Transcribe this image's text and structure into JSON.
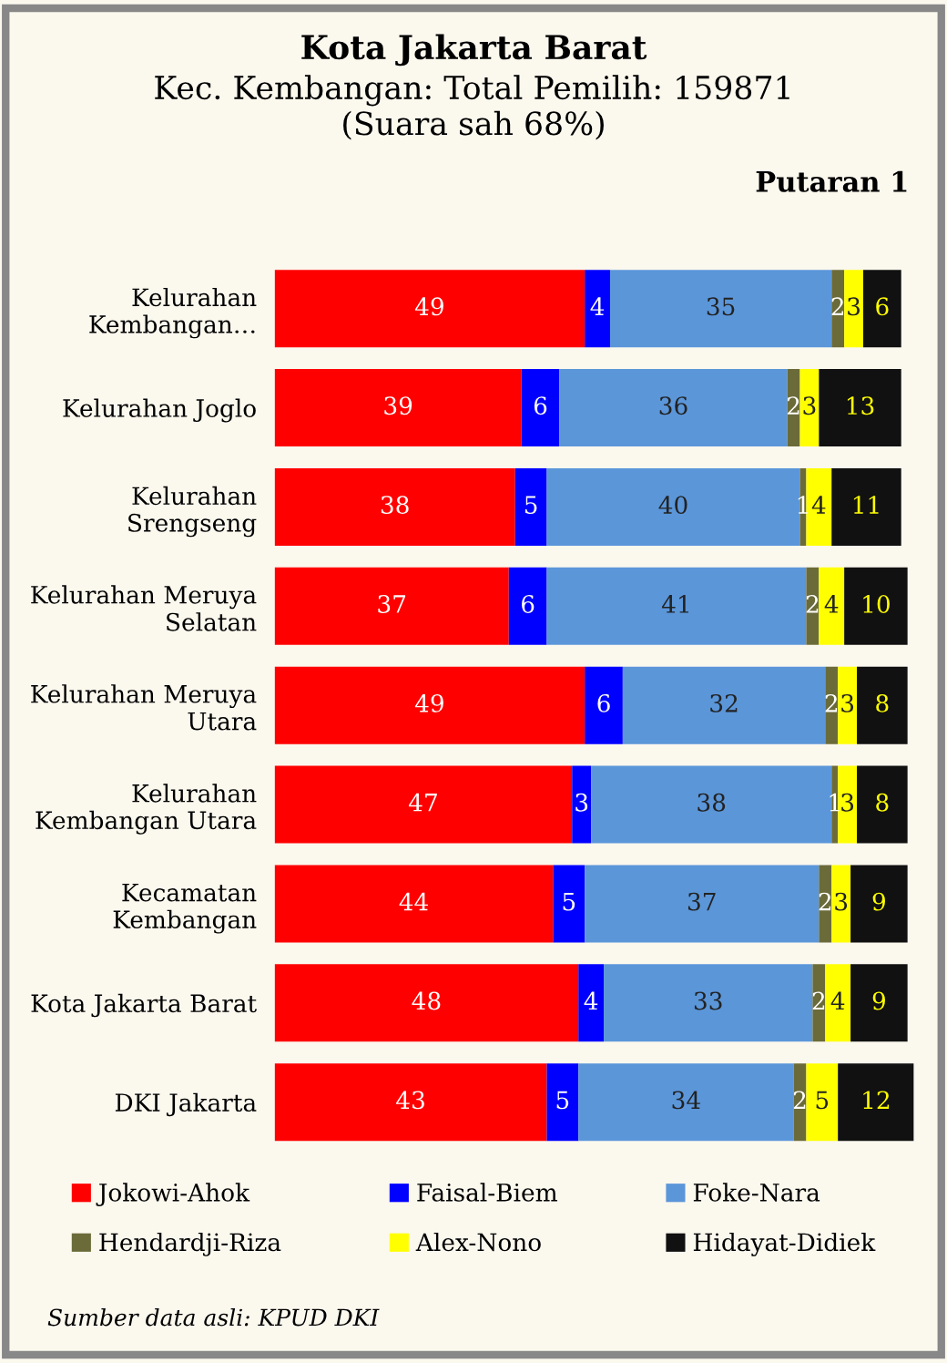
{
  "chart_data": {
    "type": "bar",
    "orientation": "horizontal",
    "stacked": true,
    "title": "Kota Jakarta Barat",
    "subtitle": "Kec. Kembangan: Total Pemilih: 159871\n(Suara sah 68%)",
    "annotations": [
      "Putaran 1",
      "Sumber data asli: KPUD DKI"
    ],
    "categories": [
      "Kelurahan\nKembangan…",
      "Kelurahan Joglo",
      "Kelurahan\nSrengseng",
      "Kelurahan Meruya\nSelatan",
      "Kelurahan Meruya\nUtara",
      "Kelurahan\nKembangan Utara",
      "Kecamatan\nKembangan",
      "Kota Jakarta Barat",
      "DKI Jakarta"
    ],
    "series": [
      {
        "name": "Jokowi-Ahok",
        "color": "#ff0000",
        "values": [
          49,
          39,
          38,
          37,
          49,
          47,
          44,
          48,
          43
        ]
      },
      {
        "name": "Faisal-Biem",
        "color": "#0000ff",
        "values": [
          4,
          6,
          5,
          6,
          6,
          3,
          5,
          4,
          5
        ]
      },
      {
        "name": "Foke-Nara",
        "color": "#5b96d9",
        "values": [
          35,
          36,
          40,
          41,
          32,
          38,
          37,
          33,
          34
        ]
      },
      {
        "name": "Hendardji-Riza",
        "color": "#6b6b3a",
        "values": [
          2,
          2,
          1,
          2,
          2,
          1,
          2,
          2,
          2
        ]
      },
      {
        "name": "Alex-Nono",
        "color": "#ffff00",
        "values": [
          3,
          3,
          4,
          4,
          3,
          3,
          3,
          4,
          5
        ]
      },
      {
        "name": "Hidayat-Didiek",
        "color": "#111111",
        "values": [
          6,
          13,
          11,
          10,
          8,
          8,
          9,
          9,
          12
        ]
      }
    ],
    "xlim": [
      0,
      101
    ],
    "data_labels": true,
    "tick_labels": "y",
    "grid": false,
    "legend": "bottom"
  }
}
